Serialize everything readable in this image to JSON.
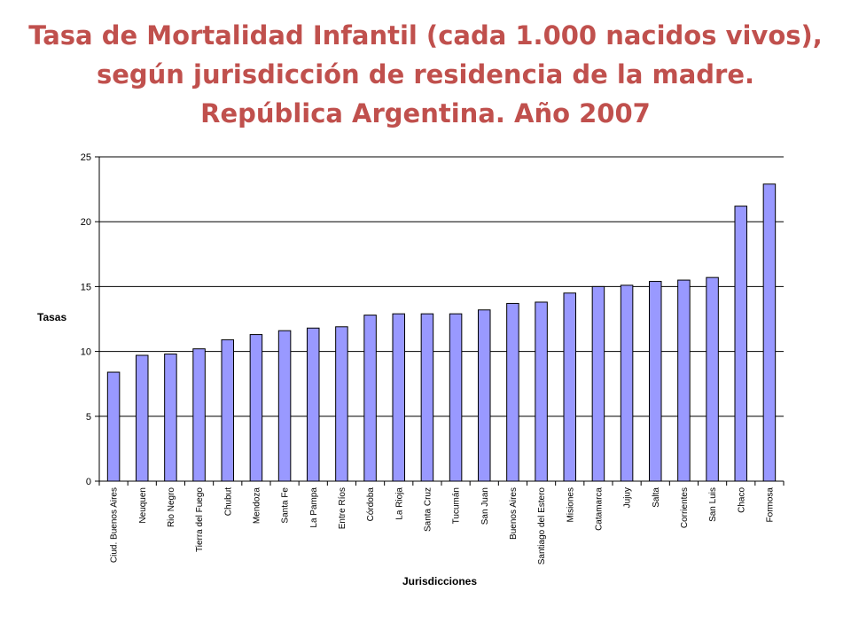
{
  "chart_data": {
    "type": "bar",
    "title_lines": [
      "Tasa de Mortalidad Infantil (cada 1.000 nacidos vivos),",
      "según jurisdicción de residencia de la madre.",
      "República Argentina. Año 2007"
    ],
    "xlabel": "Jurisdicciones",
    "ylabel": "Tasas",
    "ylim": [
      0,
      25
    ],
    "yticks": [
      0,
      5,
      10,
      15,
      20,
      25
    ],
    "grid": true,
    "bar_color": "#9999ff",
    "title_color": "#c0504d",
    "categories": [
      "Ciud. Buenos Aires",
      "Neuquen",
      "Rio Negro",
      "Tierra del Fuego",
      "Chubut",
      "Mendoza",
      "Santa Fe",
      "La Pampa",
      "Entre Ríos",
      "Córdoba",
      "La Rioja",
      "Santa Cruz",
      "Tucumán",
      "San Juan",
      "Buenos Aires",
      "Santiago del Estero",
      "Misiones",
      "Catamarca",
      "Jujuy",
      "Salta",
      "Corrientes",
      "San Luis",
      "Chaco",
      "Formosa"
    ],
    "values": [
      8.4,
      9.7,
      9.8,
      10.2,
      10.9,
      11.3,
      11.6,
      11.8,
      11.9,
      12.8,
      12.9,
      12.9,
      12.9,
      13.2,
      13.7,
      13.8,
      14.5,
      15.0,
      15.1,
      15.4,
      15.5,
      15.7,
      21.2,
      22.9
    ]
  }
}
